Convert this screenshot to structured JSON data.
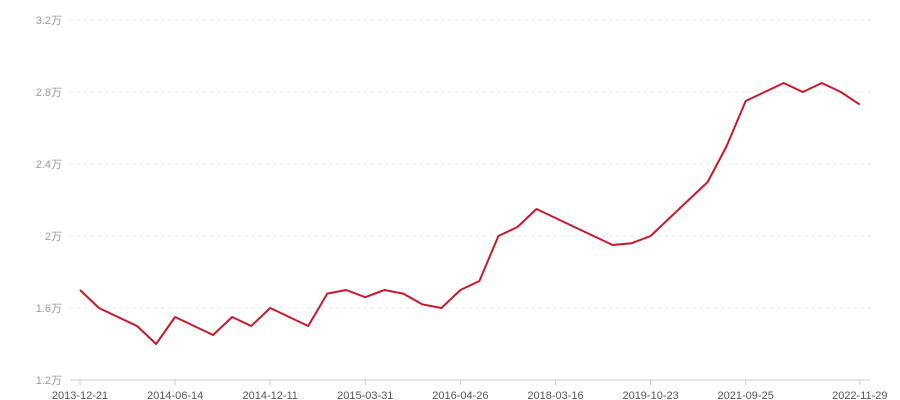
{
  "chart_data": {
    "type": "line",
    "ylim": [
      1.2,
      3.2
    ],
    "y_ticks": [
      {
        "value": 1.2,
        "label": "1.2万"
      },
      {
        "value": 1.6,
        "label": "1.6万"
      },
      {
        "value": 2.0,
        "label": "2万"
      },
      {
        "value": 2.4,
        "label": "2.4万"
      },
      {
        "value": 2.8,
        "label": "2.8万"
      },
      {
        "value": 3.2,
        "label": "3.2万"
      }
    ],
    "x_ticks": [
      {
        "index": 0,
        "label": "2013-12-21"
      },
      {
        "index": 5,
        "label": "2014-06-14"
      },
      {
        "index": 10,
        "label": "2014-12-11"
      },
      {
        "index": 15,
        "label": "2015-03-31"
      },
      {
        "index": 20,
        "label": "2016-04-26"
      },
      {
        "index": 25,
        "label": "2018-03-16"
      },
      {
        "index": 30,
        "label": "2019-10-23"
      },
      {
        "index": 35,
        "label": "2021-09-25"
      },
      {
        "index": 41,
        "label": "2022-11-29"
      }
    ],
    "grid": "horizontal dashed",
    "color": "#c8192b",
    "values": [
      1.7,
      1.6,
      1.55,
      1.5,
      1.4,
      1.55,
      1.5,
      1.45,
      1.55,
      1.5,
      1.6,
      1.55,
      1.5,
      1.68,
      1.7,
      1.66,
      1.7,
      1.68,
      1.62,
      1.6,
      1.7,
      1.75,
      2.0,
      2.05,
      2.15,
      2.1,
      2.05,
      2.0,
      1.95,
      1.96,
      2.0,
      2.1,
      2.2,
      2.3,
      2.5,
      2.75,
      2.8,
      2.85,
      2.8,
      2.85,
      2.8,
      2.73
    ]
  }
}
